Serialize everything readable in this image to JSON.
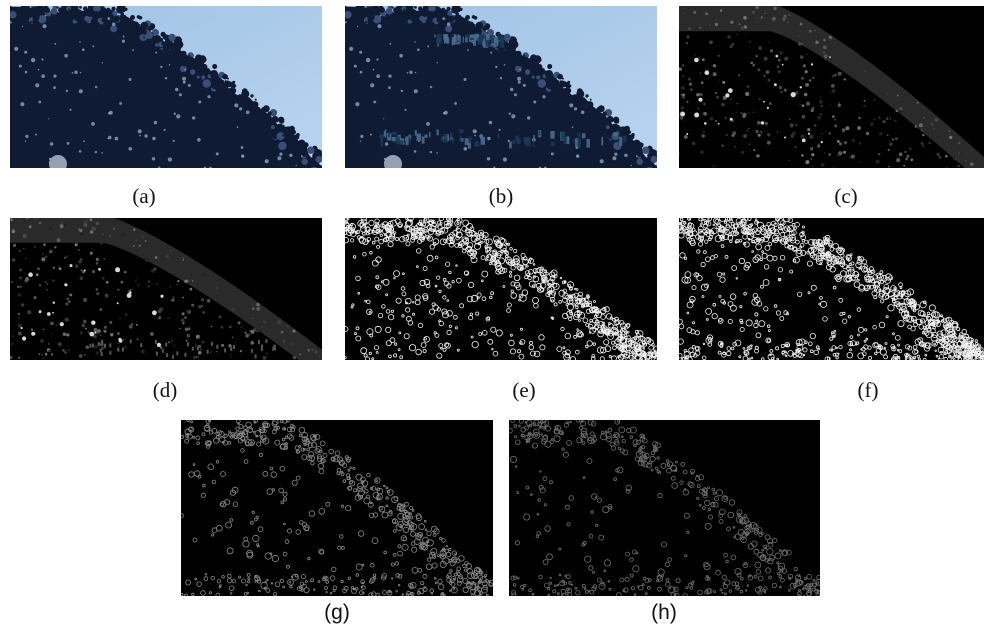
{
  "figure": {
    "panels": [
      {
        "caption": "(a)",
        "kind": "photo-original"
      },
      {
        "caption": "(b)",
        "kind": "photo-corrupted"
      },
      {
        "caption": "(c)",
        "kind": "dark-map-sky"
      },
      {
        "caption": "(d)",
        "kind": "dark-map-sky-corrupted"
      },
      {
        "caption": "(e)",
        "kind": "edge-map-dense"
      },
      {
        "caption": "(f)",
        "kind": "edge-map-dense-corrupted"
      },
      {
        "caption": "(g)",
        "kind": "edge-map-sparse"
      },
      {
        "caption": "(h)",
        "kind": "edge-map-sparse-dim"
      }
    ]
  },
  "colors": {
    "sky_top": "#9fc2e4",
    "sky_bottom": "#b9d4ef",
    "foliage": "#0f1b33",
    "edge_bright": "#f2f2f2",
    "edge_dim": "#8a8a8a",
    "background_dark": "#000000"
  }
}
